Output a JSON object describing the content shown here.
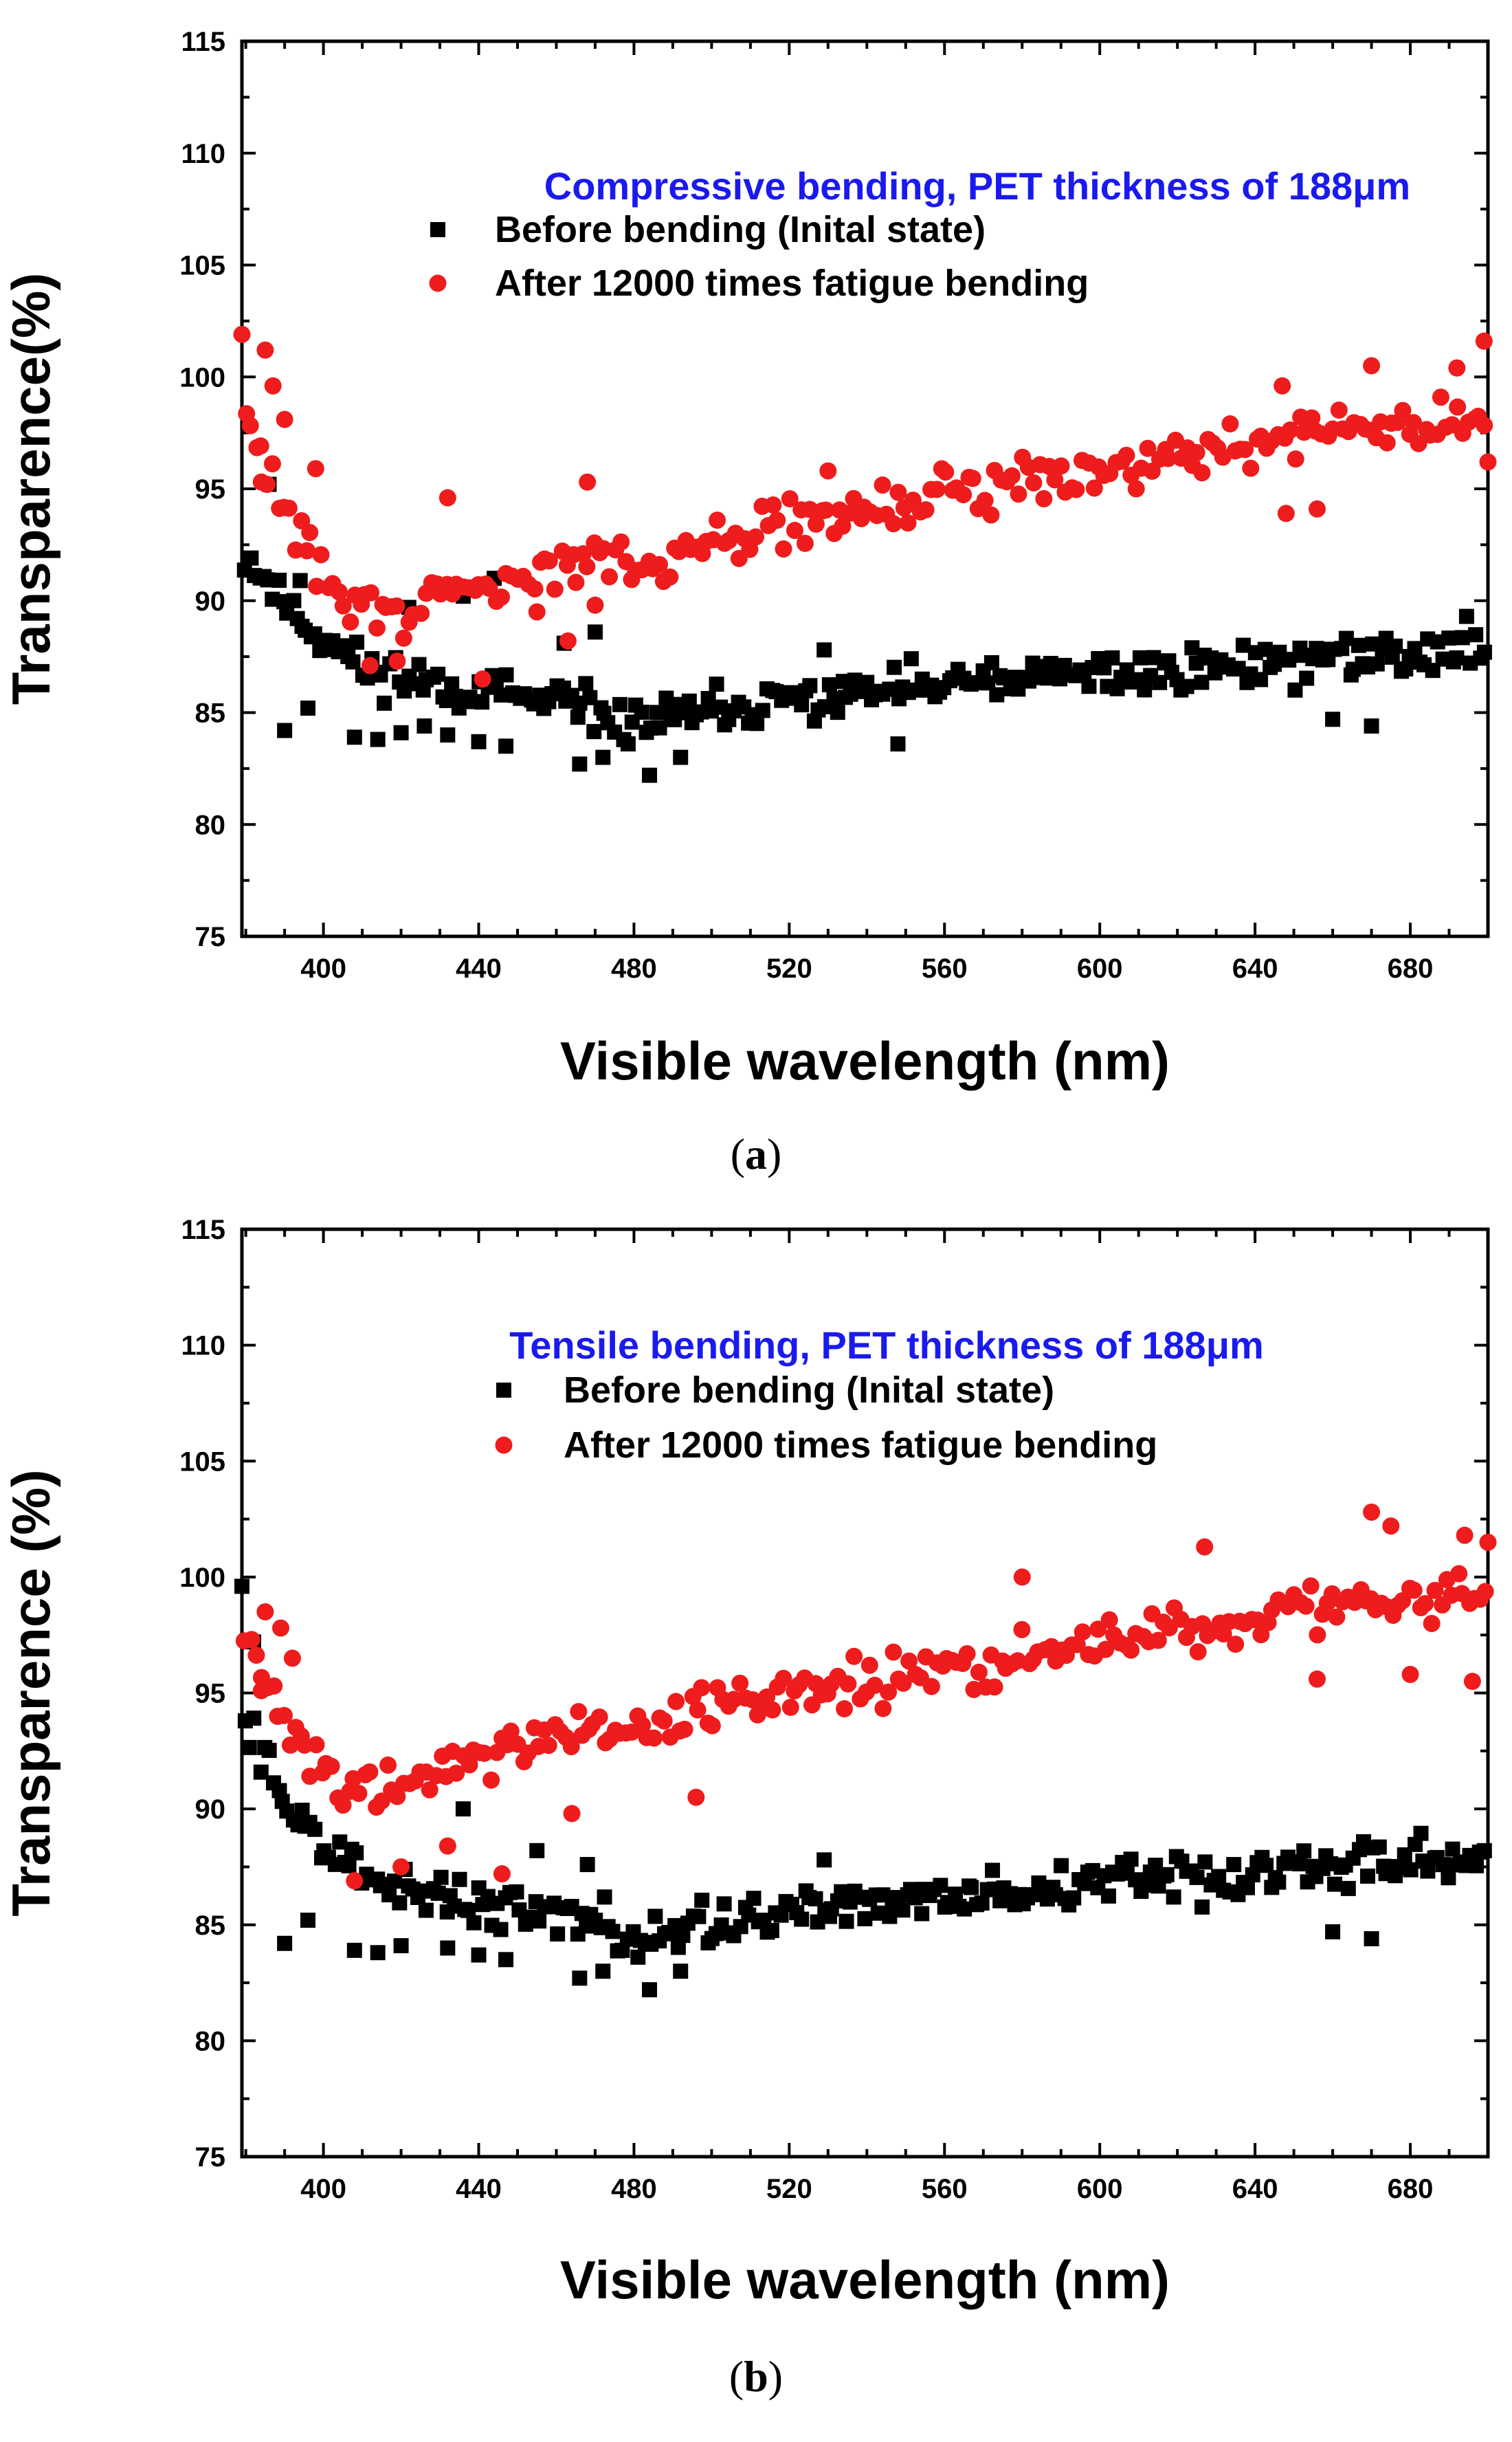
{
  "colors": {
    "before": "#000000",
    "after": "#ee1c1c",
    "title": "#1a1aee"
  },
  "chart_data": [
    {
      "type": "scatter",
      "panel": "a",
      "caption": {
        "open": "(",
        "letter": "a",
        "close": ")"
      },
      "title": "Compressive bending, PET thickness of 188μm",
      "xlabel": "Visible wavelength (nm)",
      "ylabel": "Transparence(%)",
      "xlim": [
        379,
        700
      ],
      "ylim": [
        75,
        115
      ],
      "xticks": [
        400,
        440,
        480,
        520,
        560,
        600,
        640,
        680
      ],
      "yticks": [
        75,
        80,
        85,
        90,
        95,
        100,
        105,
        110,
        115
      ],
      "legend_position": "top-center",
      "series": [
        {
          "name": "Before bending (Inital state)",
          "marker": "square",
          "trend": [
            [
              380,
              92
            ],
            [
              395,
              89
            ],
            [
              410,
              87
            ],
            [
              430,
              86.3
            ],
            [
              460,
              85.3
            ],
            [
              480,
              84.5
            ],
            [
              500,
              85
            ],
            [
              530,
              85.7
            ],
            [
              560,
              86.2
            ],
            [
              600,
              86.7
            ],
            [
              640,
              87.2
            ],
            [
              680,
              87.6
            ],
            [
              700,
              88
            ]
          ],
          "spread": 1.5,
          "step": 1.2,
          "seed": 11,
          "outliers": [
            [
              390,
              84.2
            ],
            [
              396,
              85.2
            ],
            [
              408,
              83.9
            ],
            [
              414,
              83.8
            ],
            [
              420,
              84.1
            ],
            [
              426,
              84.4
            ],
            [
              432,
              84
            ],
            [
              440,
              83.7
            ],
            [
              447,
              83.5
            ],
            [
              466,
              82.7
            ],
            [
              472,
              83
            ],
            [
              484,
              82.2
            ],
            [
              492,
              83
            ],
            [
              470,
              88.6
            ],
            [
              462,
              88.1
            ],
            [
              436,
              90.2
            ],
            [
              444,
              91
            ],
            [
              422,
              89.7
            ],
            [
              394,
              90.9
            ],
            [
              386,
              95.2
            ],
            [
              529,
              87.8
            ],
            [
              548,
              83.6
            ],
            [
              670,
              84.4
            ],
            [
              660,
              84.7
            ]
          ]
        },
        {
          "name": "After 12000 times fatigue bending",
          "marker": "circle",
          "trend": [
            [
              380,
              98
            ],
            [
              385,
              96
            ],
            [
              395,
              92.5
            ],
            [
              405,
              90
            ],
            [
              420,
              89.5
            ],
            [
              440,
              90.5
            ],
            [
              460,
              91.5
            ],
            [
              480,
              91.8
            ],
            [
              500,
              92.4
            ],
            [
              520,
              93.4
            ],
            [
              540,
              94
            ],
            [
              560,
              94.7
            ],
            [
              580,
              95.4
            ],
            [
              600,
              96
            ],
            [
              620,
              96.6
            ],
            [
              640,
              97.1
            ],
            [
              660,
              97.5
            ],
            [
              680,
              97.8
            ],
            [
              700,
              98.3
            ]
          ],
          "spread": 1.6,
          "step": 1.4,
          "seed": 29,
          "outliers": [
            [
              379,
              101.9
            ],
            [
              385,
              101.2
            ],
            [
              387,
              99.6
            ],
            [
              390,
              98.1
            ],
            [
              384,
              95.3
            ],
            [
              398,
              95.9
            ],
            [
              432,
              94.6
            ],
            [
              468,
              95.3
            ],
            [
              530,
              95.8
            ],
            [
              670,
              100.5
            ],
            [
              692,
              100.4
            ],
            [
              699,
              101.6
            ],
            [
              647,
              99.6
            ],
            [
              656,
              94.1
            ],
            [
              648,
              93.9
            ],
            [
              441,
              86.5
            ],
            [
              412,
              87.1
            ],
            [
              419,
              87.3
            ],
            [
              463,
              88.2
            ],
            [
              455,
              89.5
            ],
            [
              700,
              96.2
            ],
            [
              470,
              89.8
            ]
          ]
        }
      ]
    },
    {
      "type": "scatter",
      "panel": "b",
      "caption": {
        "open": "(",
        "letter": "b",
        "close": ")"
      },
      "title": "Tensile bending, PET thickness of 188μm",
      "xlabel": "Visible wavelength (nm)",
      "ylabel": "Transparence (%)",
      "xlim": [
        379,
        700
      ],
      "ylim": [
        75,
        115
      ],
      "xticks": [
        400,
        440,
        480,
        520,
        560,
        600,
        640,
        680
      ],
      "yticks": [
        75,
        80,
        85,
        90,
        95,
        100,
        105,
        110,
        115
      ],
      "legend_position": "top-center",
      "series": [
        {
          "name": "Before bending (Inital state)",
          "marker": "square",
          "trend": [
            [
              380,
              94
            ],
            [
              393,
              89.5
            ],
            [
              410,
              87
            ],
            [
              430,
              86.3
            ],
            [
              460,
              85.3
            ],
            [
              480,
              84.5
            ],
            [
              500,
              85
            ],
            [
              530,
              85.7
            ],
            [
              560,
              86.2
            ],
            [
              600,
              86.7
            ],
            [
              640,
              87.2
            ],
            [
              680,
              87.6
            ],
            [
              700,
              88
            ]
          ],
          "spread": 1.5,
          "step": 1.2,
          "seed": 11,
          "outliers": [
            [
              379,
              99.6
            ],
            [
              382,
              97.2
            ],
            [
              390,
              84.2
            ],
            [
              396,
              85.2
            ],
            [
              408,
              83.9
            ],
            [
              414,
              83.8
            ],
            [
              420,
              84.1
            ],
            [
              432,
              84
            ],
            [
              440,
              83.7
            ],
            [
              447,
              83.5
            ],
            [
              466,
              82.7
            ],
            [
              472,
              83
            ],
            [
              484,
              82.2
            ],
            [
              492,
              83
            ],
            [
              468,
              87.6
            ],
            [
              455,
              88.2
            ],
            [
              436,
              90
            ],
            [
              529,
              87.8
            ],
            [
              670,
              84.4
            ],
            [
              660,
              84.7
            ]
          ]
        },
        {
          "name": "After 12000 times fatigue bending",
          "marker": "circle",
          "trend": [
            [
              380,
              97.5
            ],
            [
              390,
              94
            ],
            [
              400,
              92
            ],
            [
              410,
              91
            ],
            [
              420,
              91.2
            ],
            [
              440,
              92.2
            ],
            [
              460,
              93
            ],
            [
              480,
              93.3
            ],
            [
              500,
              94.2
            ],
            [
              520,
              95
            ],
            [
              540,
              95.3
            ],
            [
              560,
              96
            ],
            [
              580,
              96.6
            ],
            [
              600,
              97.2
            ],
            [
              620,
              97.8
            ],
            [
              640,
              98.2
            ],
            [
              660,
              98.6
            ],
            [
              680,
              99
            ],
            [
              700,
              99.5
            ]
          ],
          "spread": 1.6,
          "step": 1.4,
          "seed": 29,
          "outliers": [
            [
              385,
              98.5
            ],
            [
              389,
              97.8
            ],
            [
              392,
              96.5
            ],
            [
              384,
              95.1
            ],
            [
              408,
              86.9
            ],
            [
              420,
              87.5
            ],
            [
              432,
              88.4
            ],
            [
              446,
              87.2
            ],
            [
              464,
              89.8
            ],
            [
              496,
              90.5
            ],
            [
              580,
              100
            ],
            [
              627,
              101.3
            ],
            [
              670,
              102.8
            ],
            [
              675,
              102.2
            ],
            [
              694,
              101.8
            ],
            [
              700,
              101.5
            ],
            [
              696,
              95.5
            ],
            [
              680,
              95.8
            ],
            [
              656,
              95.6
            ]
          ]
        }
      ]
    }
  ]
}
